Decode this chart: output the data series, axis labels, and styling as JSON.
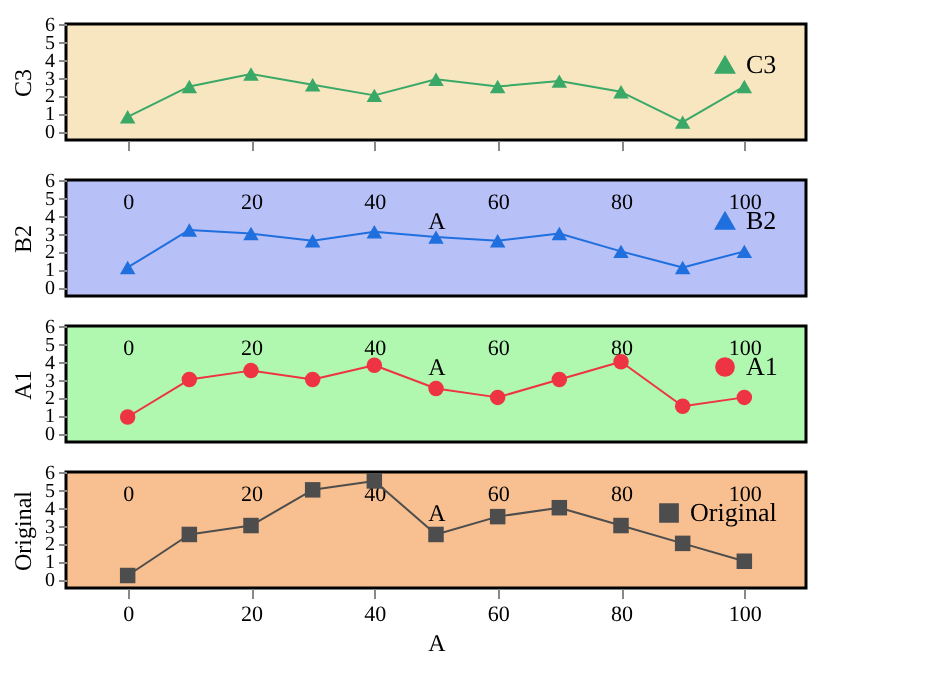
{
  "chart_data": [
    {
      "type": "line",
      "x": [
        0,
        10,
        20,
        30,
        40,
        50,
        60,
        70,
        80,
        90,
        100
      ],
      "ylabel": "C3",
      "xlim": [
        -10,
        110
      ],
      "xticks": [
        0,
        20,
        40,
        60,
        80,
        100
      ],
      "ylim": [
        -0.5,
        6
      ],
      "yticks": [
        0,
        1,
        2,
        3,
        4,
        5,
        6
      ],
      "tick_labels": "y",
      "legend": "top right",
      "marker": "triangle",
      "series": [
        {
          "name": "C3",
          "color": "#3aa866",
          "values": [
            0.8,
            2.5,
            3.2,
            2.6,
            2.0,
            2.9,
            2.5,
            2.8,
            2.2,
            0.5,
            2.5
          ]
        }
      ]
    },
    {
      "type": "line",
      "x": [
        0,
        10,
        20,
        30,
        40,
        50,
        60,
        70,
        80,
        90,
        100
      ],
      "ylabel": "B2",
      "x2label": "A",
      "xlim": [
        -10,
        110
      ],
      "x2lim": [
        -10,
        110
      ],
      "x2ticks": [
        0,
        20,
        40,
        60,
        80,
        100
      ],
      "ylim": [
        -0.5,
        6
      ],
      "yticks": [
        0,
        1,
        2,
        3,
        4,
        5,
        6
      ],
      "legend": "top right",
      "marker": "triangle",
      "series": [
        {
          "name": "B2",
          "color": "#1f6fde",
          "values": [
            1.1,
            3.2,
            3.0,
            2.6,
            3.1,
            2.8,
            2.6,
            3.0,
            2.0,
            1.1,
            2.0
          ]
        }
      ]
    },
    {
      "type": "line",
      "x": [
        0,
        10,
        20,
        30,
        40,
        50,
        60,
        70,
        80,
        90,
        100
      ],
      "ylabel": "A1",
      "x2label": "A",
      "xlim": [
        -10,
        110
      ],
      "x2lim": [
        -10,
        110
      ],
      "x2ticks": [
        0,
        20,
        40,
        60,
        80,
        100
      ],
      "ylim": [
        -0.5,
        6
      ],
      "yticks": [
        0,
        1,
        2,
        3,
        4,
        5,
        6
      ],
      "legend": "top right",
      "marker": "circle",
      "series": [
        {
          "name": "A1",
          "color": "#ee3344",
          "values": [
            0.9,
            3.0,
            3.5,
            3.0,
            3.8,
            2.5,
            2.0,
            3.0,
            4.0,
            1.5,
            2.0
          ]
        }
      ]
    },
    {
      "type": "line",
      "x": [
        0,
        10,
        20,
        30,
        40,
        50,
        60,
        70,
        80,
        90,
        100
      ],
      "ylabel": "Original",
      "xlabel": "A",
      "x2label": "A",
      "xlim": [
        -10,
        110
      ],
      "xticks": [
        0,
        20,
        40,
        60,
        80,
        100
      ],
      "x2lim": [
        -10,
        110
      ],
      "x2ticks": [
        0,
        20,
        40,
        60,
        80,
        100
      ],
      "ylim": [
        -0.5,
        6
      ],
      "yticks": [
        0,
        1,
        2,
        3,
        4,
        5,
        6
      ],
      "legend": "top right",
      "marker": "square",
      "series": [
        {
          "name": "Original",
          "color": "#4d4d4d",
          "values": [
            0.2,
            2.5,
            3.0,
            5.0,
            5.5,
            2.5,
            3.5,
            4.0,
            3.0,
            2.0,
            1.0
          ]
        }
      ]
    }
  ]
}
